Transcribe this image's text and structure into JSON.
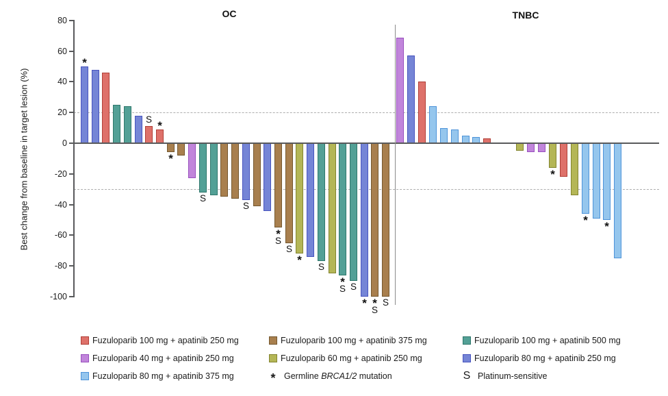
{
  "figure": {
    "ylabel": "Best change from baseline in target lesion (%)"
  },
  "colors": {
    "red": {
      "fill": "#DE716A",
      "border": "#B03E36"
    },
    "brown": {
      "fill": "#A87F4E",
      "border": "#74572E"
    },
    "teal": {
      "fill": "#53A096",
      "border": "#2E776B"
    },
    "purple": {
      "fill": "#C185DB",
      "border": "#984FBE"
    },
    "olive": {
      "fill": "#B4B656",
      "border": "#82842F"
    },
    "blue": {
      "fill": "#7585D6",
      "border": "#4753BE"
    },
    "lightblue": {
      "fill": "#95C6ED",
      "border": "#4D93D9"
    },
    "axis": "#58595B",
    "dashed_grid": "#ADADAD",
    "text": "#1A1A1A"
  },
  "legend": {
    "items": [
      {
        "key": "100+250",
        "color": "red",
        "label": "Fuzuloparib 100 mg + apatinib 250 mg"
      },
      {
        "key": "100+375",
        "color": "brown",
        "label": "Fuzuloparib 100 mg + apatinib 375 mg"
      },
      {
        "key": "100+500",
        "color": "teal",
        "label": "Fuzuloparib 100 mg + apatinib 500 mg"
      },
      {
        "key": "40+250",
        "color": "purple",
        "label": "Fuzuloparib 40 mg + apatinib 250 mg"
      },
      {
        "key": "60+250",
        "color": "olive",
        "label": "Fuzuloparib 60 mg + apatinib 250 mg"
      },
      {
        "key": "80+250",
        "color": "blue",
        "label": "Fuzuloparib 80 mg + apatinib 250 mg"
      },
      {
        "key": "80+375",
        "color": "lightblue",
        "label": "Fuzuloparib 80 mg + apatinib 375 mg"
      },
      {
        "key": "star",
        "marker": "*",
        "label_parts": [
          {
            "t": "Germline "
          },
          {
            "t": "BRCA1/2",
            "italic": true
          },
          {
            "t": " mutation"
          }
        ]
      },
      {
        "key": "S",
        "marker": "S",
        "label_parts": [
          {
            "t": "Platinum-sensitive"
          }
        ]
      }
    ],
    "layout_columns": [
      [
        "100+250",
        "40+250",
        "80+375"
      ],
      [
        "100+375",
        "60+250",
        "star"
      ],
      [
        "100+500",
        "80+250",
        "S"
      ]
    ]
  },
  "chart_data": [
    {
      "type": "bar",
      "title": "OC",
      "ylabel": "Best change from baseline in target lesion (%)",
      "ylim": [
        -100,
        80
      ],
      "yticks": [
        80,
        60,
        40,
        20,
        0,
        -20,
        -40,
        -60,
        -80,
        -100
      ],
      "reference_lines": [
        20,
        -30
      ],
      "flag_meaning": {
        "*": "Germline BRCA1/2 mutation",
        "S": "Platinum-sensitive"
      },
      "bars": [
        {
          "value": 50,
          "group": "80+250",
          "flag": "*"
        },
        {
          "value": 48,
          "group": "80+250"
        },
        {
          "value": 46,
          "group": "100+250"
        },
        {
          "value": 25,
          "group": "100+500"
        },
        {
          "value": 24,
          "group": "100+500"
        },
        {
          "value": 18,
          "group": "80+250"
        },
        {
          "value": 11,
          "group": "100+250",
          "flag": "S"
        },
        {
          "value": 9,
          "group": "100+250",
          "flag": "*"
        },
        {
          "value": -6,
          "group": "100+375",
          "flag": "*"
        },
        {
          "value": -8,
          "group": "100+375"
        },
        {
          "value": -23,
          "group": "40+250"
        },
        {
          "value": -32,
          "group": "100+500",
          "flag": "S"
        },
        {
          "value": -34,
          "group": "100+500"
        },
        {
          "value": -35,
          "group": "100+375"
        },
        {
          "value": -36,
          "group": "100+375"
        },
        {
          "value": -37,
          "group": "80+250",
          "flag": "S"
        },
        {
          "value": -41,
          "group": "100+375"
        },
        {
          "value": -44,
          "group": "80+250"
        },
        {
          "value": -55,
          "group": "100+375",
          "flag": "*S"
        },
        {
          "value": -65,
          "group": "100+375",
          "flag": "S"
        },
        {
          "value": -72,
          "group": "60+250",
          "flag": "*"
        },
        {
          "value": -74,
          "group": "80+250"
        },
        {
          "value": -77,
          "group": "100+500",
          "flag": "S"
        },
        {
          "value": -85,
          "group": "60+250"
        },
        {
          "value": -86,
          "group": "100+500",
          "flag": "*S"
        },
        {
          "value": -90,
          "group": "100+500",
          "flag": "S"
        },
        {
          "value": -100,
          "group": "80+250",
          "flag": "*"
        },
        {
          "value": -100,
          "group": "100+375",
          "flag": "*S"
        },
        {
          "value": -100,
          "group": "100+375",
          "flag": "S"
        }
      ]
    },
    {
      "type": "bar",
      "title": "TNBC",
      "ylabel": "",
      "ylim": [
        -100,
        80
      ],
      "yticks": [
        80,
        60,
        40,
        20,
        0,
        -20,
        -40,
        -60,
        -80,
        -100
      ],
      "reference_lines": [
        20,
        -30
      ],
      "flag_meaning": {
        "*": "Germline BRCA1/2 mutation",
        "S": "Platinum-sensitive"
      },
      "bars": [
        {
          "value": 69,
          "group": "40+250"
        },
        {
          "value": 57,
          "group": "80+250"
        },
        {
          "value": 40,
          "group": "100+250"
        },
        {
          "value": 24,
          "group": "80+375"
        },
        {
          "value": 10,
          "group": "80+375"
        },
        {
          "value": 9,
          "group": "80+375"
        },
        {
          "value": 5,
          "group": "80+375"
        },
        {
          "value": 4,
          "group": "80+375"
        },
        {
          "value": 3,
          "group": "100+250"
        },
        {
          "value": 0,
          "group": null
        },
        {
          "value": 0,
          "group": null
        },
        {
          "value": -5,
          "group": "60+250"
        },
        {
          "value": -6,
          "group": "40+250"
        },
        {
          "value": -6,
          "group": "40+250"
        },
        {
          "value": -16,
          "group": "60+250",
          "flag": "*"
        },
        {
          "value": -22,
          "group": "100+250"
        },
        {
          "value": -34,
          "group": "60+250"
        },
        {
          "value": -46,
          "group": "80+375",
          "flag": "*"
        },
        {
          "value": -49,
          "group": "80+375"
        },
        {
          "value": -50,
          "group": "80+375",
          "flag": "*"
        },
        {
          "value": -75,
          "group": "80+375"
        }
      ]
    }
  ]
}
